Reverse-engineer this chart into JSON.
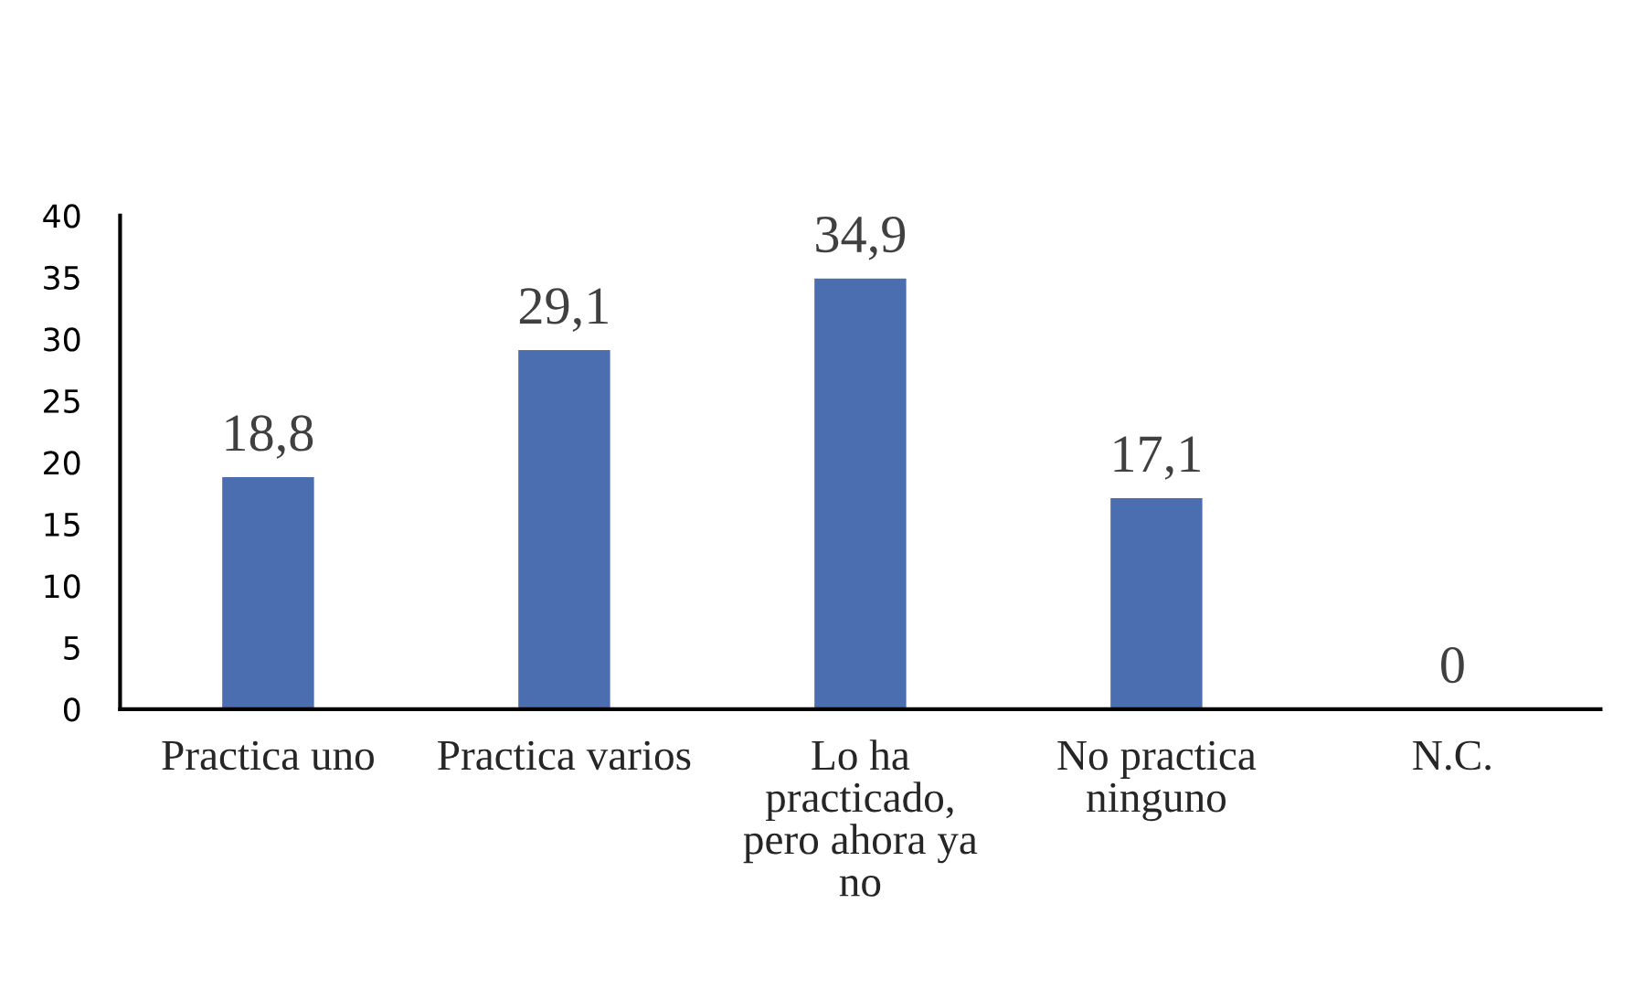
{
  "chart_data": {
    "type": "bar",
    "categories": [
      "Practica uno",
      "Practica varios",
      "Lo ha practicado, pero ahora ya no",
      "No practica ninguno",
      "N.C."
    ],
    "values": [
      18.8,
      29.1,
      34.9,
      17.1,
      0
    ],
    "value_labels": [
      "18,8",
      "29,1",
      "34,9",
      "17,1",
      "0"
    ],
    "color": "#4a6eb0",
    "ylim": [
      0,
      40
    ],
    "yticks": [
      0,
      5,
      10,
      15,
      20,
      25,
      30,
      35,
      40
    ],
    "grid": false,
    "legend": false
  }
}
